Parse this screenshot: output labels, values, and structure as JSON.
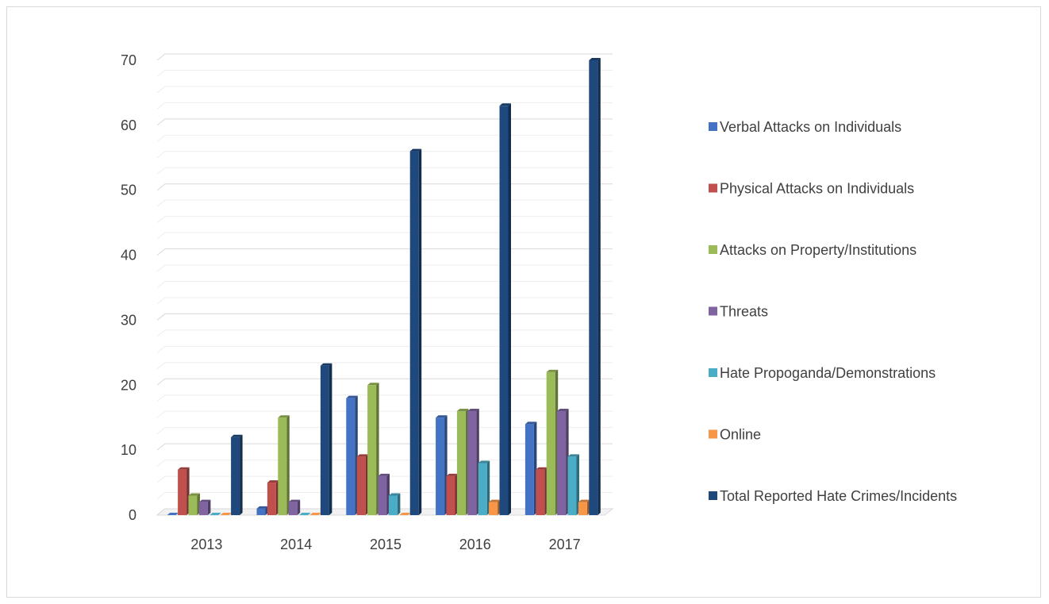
{
  "chart_data": {
    "type": "bar",
    "title": "",
    "xlabel": "",
    "ylabel": "",
    "ylim": [
      0,
      70
    ],
    "y_ticks": [
      0,
      10,
      20,
      30,
      40,
      50,
      60,
      70
    ],
    "categories": [
      "2013",
      "2014",
      "2015",
      "2016",
      "2017"
    ],
    "grid": "horizontal",
    "legend_position": "right",
    "style": "3d-clustered-column",
    "series": [
      {
        "name": "Verbal Attacks on Individuals",
        "color": "#4472c4",
        "values": [
          0,
          1,
          18,
          15,
          14
        ]
      },
      {
        "name": "Physical Attacks on Individuals",
        "color": "#c0504d",
        "values": [
          7,
          5,
          9,
          6,
          7
        ]
      },
      {
        "name": "Attacks on Property/Institutions",
        "color": "#9bbb59",
        "values": [
          3,
          15,
          20,
          16,
          22
        ]
      },
      {
        "name": "Threats",
        "color": "#8064a2",
        "values": [
          2,
          2,
          6,
          16,
          16
        ]
      },
      {
        "name": "Hate Propoganda/Demonstrations",
        "color": "#4bacc6",
        "values": [
          0,
          0,
          3,
          8,
          9
        ]
      },
      {
        "name": "Online",
        "color": "#f79646",
        "values": [
          0,
          0,
          0,
          2,
          2
        ]
      },
      {
        "name": "Total Reported Hate Crimes/Incidents",
        "color": "#1f497d",
        "values": [
          12,
          23,
          56,
          63,
          70
        ]
      }
    ]
  }
}
